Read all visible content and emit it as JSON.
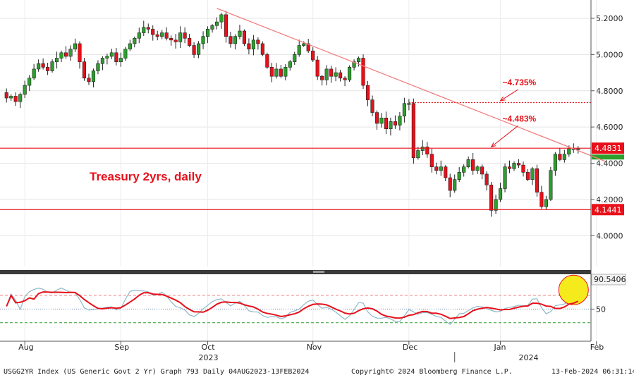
{
  "chart_data": {
    "type": "candlestick",
    "title": "Treasury 2yrs, daily",
    "footer": {
      "left": "USGG2YR Index (US Generic Govt 2 Yr) Graph 793  Daily 04AUG2023-13FEB2024",
      "center": "Copyright© 2024 Bloomberg Finance L.P.",
      "right": "13-Feb-2024 06:31:14"
    },
    "price_axis": {
      "ylim": [
        3.83,
        5.27
      ],
      "ticks": [
        "5.2000",
        "5.0000",
        "4.8000",
        "4.6000",
        "4.4000",
        "4.2000",
        "4.0000"
      ],
      "tick_values": [
        5.2,
        5.0,
        4.8,
        4.6,
        4.4,
        4.2,
        4.0
      ]
    },
    "x_axis": {
      "months": [
        {
          "label": "Aug",
          "day": 4
        },
        {
          "label": "Sep",
          "day": 25
        },
        {
          "label": "Oct",
          "day": 44
        },
        {
          "label": "Nov",
          "day": 67
        },
        {
          "label": "Dec",
          "day": 88
        },
        {
          "label": "Jan",
          "day": 108
        },
        {
          "label": "Feb",
          "day": 129
        }
      ],
      "years": [
        {
          "label": "2023",
          "day": 44
        },
        {
          "label": "2024",
          "day": 114
        }
      ],
      "year_divider_day": 98
    },
    "close_series": [
      4.76,
      4.77,
      4.74,
      4.78,
      4.83,
      4.87,
      4.92,
      4.95,
      4.93,
      4.91,
      4.96,
      4.98,
      5.01,
      4.99,
      5.03,
      5.06,
      4.96,
      4.87,
      4.85,
      4.91,
      4.95,
      4.98,
      4.99,
      5.01,
      4.96,
      4.98,
      5.03,
      5.06,
      5.09,
      5.12,
      5.15,
      5.14,
      5.11,
      5.1,
      5.12,
      5.09,
      5.08,
      5.07,
      5.12,
      5.09,
      5.05,
      5.0,
      5.06,
      5.1,
      5.14,
      5.16,
      5.18,
      5.22,
      5.1,
      5.06,
      5.1,
      5.13,
      5.06,
      5.03,
      5.08,
      5.06,
      5.0,
      4.93,
      4.88,
      4.92,
      4.88,
      4.93,
      4.96,
      5.0,
      5.05,
      5.06,
      5.02,
      4.97,
      4.88,
      4.86,
      4.92,
      4.88,
      4.9,
      4.87,
      4.86,
      4.93,
      4.96,
      4.98,
      4.83,
      4.75,
      4.68,
      4.62,
      4.65,
      4.59,
      4.63,
      4.61,
      4.66,
      4.73,
      4.73,
      4.43,
      4.47,
      4.49,
      4.45,
      4.38,
      4.36,
      4.38,
      4.32,
      4.25,
      4.31,
      4.35,
      4.38,
      4.42,
      4.36,
      4.38,
      4.34,
      4.28,
      4.14,
      4.2,
      4.26,
      4.38,
      4.37,
      4.4,
      4.39,
      4.35,
      4.31,
      4.37,
      4.24,
      4.16,
      4.2,
      4.36,
      4.45,
      4.42,
      4.45,
      4.48,
      4.48,
      4.48
    ],
    "trendline": {
      "start": {
        "day": 46,
        "value": 5.255
      },
      "end": {
        "day": 131,
        "value": 4.41
      }
    },
    "levels": [
      {
        "value": 4.4831,
        "label": "4.4831",
        "style": "solid"
      },
      {
        "value": 4.1441,
        "label": "4.1441",
        "style": "solid"
      },
      {
        "value": 4.735,
        "label": "",
        "style": "dotted",
        "from_day": 88
      }
    ],
    "annotations": [
      {
        "text": "~4.735%",
        "day": 110,
        "value": 4.83,
        "arrow_to": {
          "day": 108,
          "value": 4.745
        }
      },
      {
        "text": "~4.483%",
        "day": 110,
        "value": 4.63,
        "arrow_to": {
          "day": 106,
          "value": 4.49
        }
      }
    ],
    "oscillator": {
      "ylim": [
        5,
        100
      ],
      "ticks": [
        "50"
      ],
      "tick_values": [
        50
      ],
      "last_value_label": "90.5406",
      "overbought": 70,
      "oversold": 30
    },
    "colors": {
      "up": "#2ca02c",
      "down": "#e8101a",
      "level": "#e8101a",
      "trend": "#f08080",
      "osc_main": "#e8101a",
      "osc_signal": "#8fb8c8",
      "highlight": "#f5ea1c"
    }
  }
}
